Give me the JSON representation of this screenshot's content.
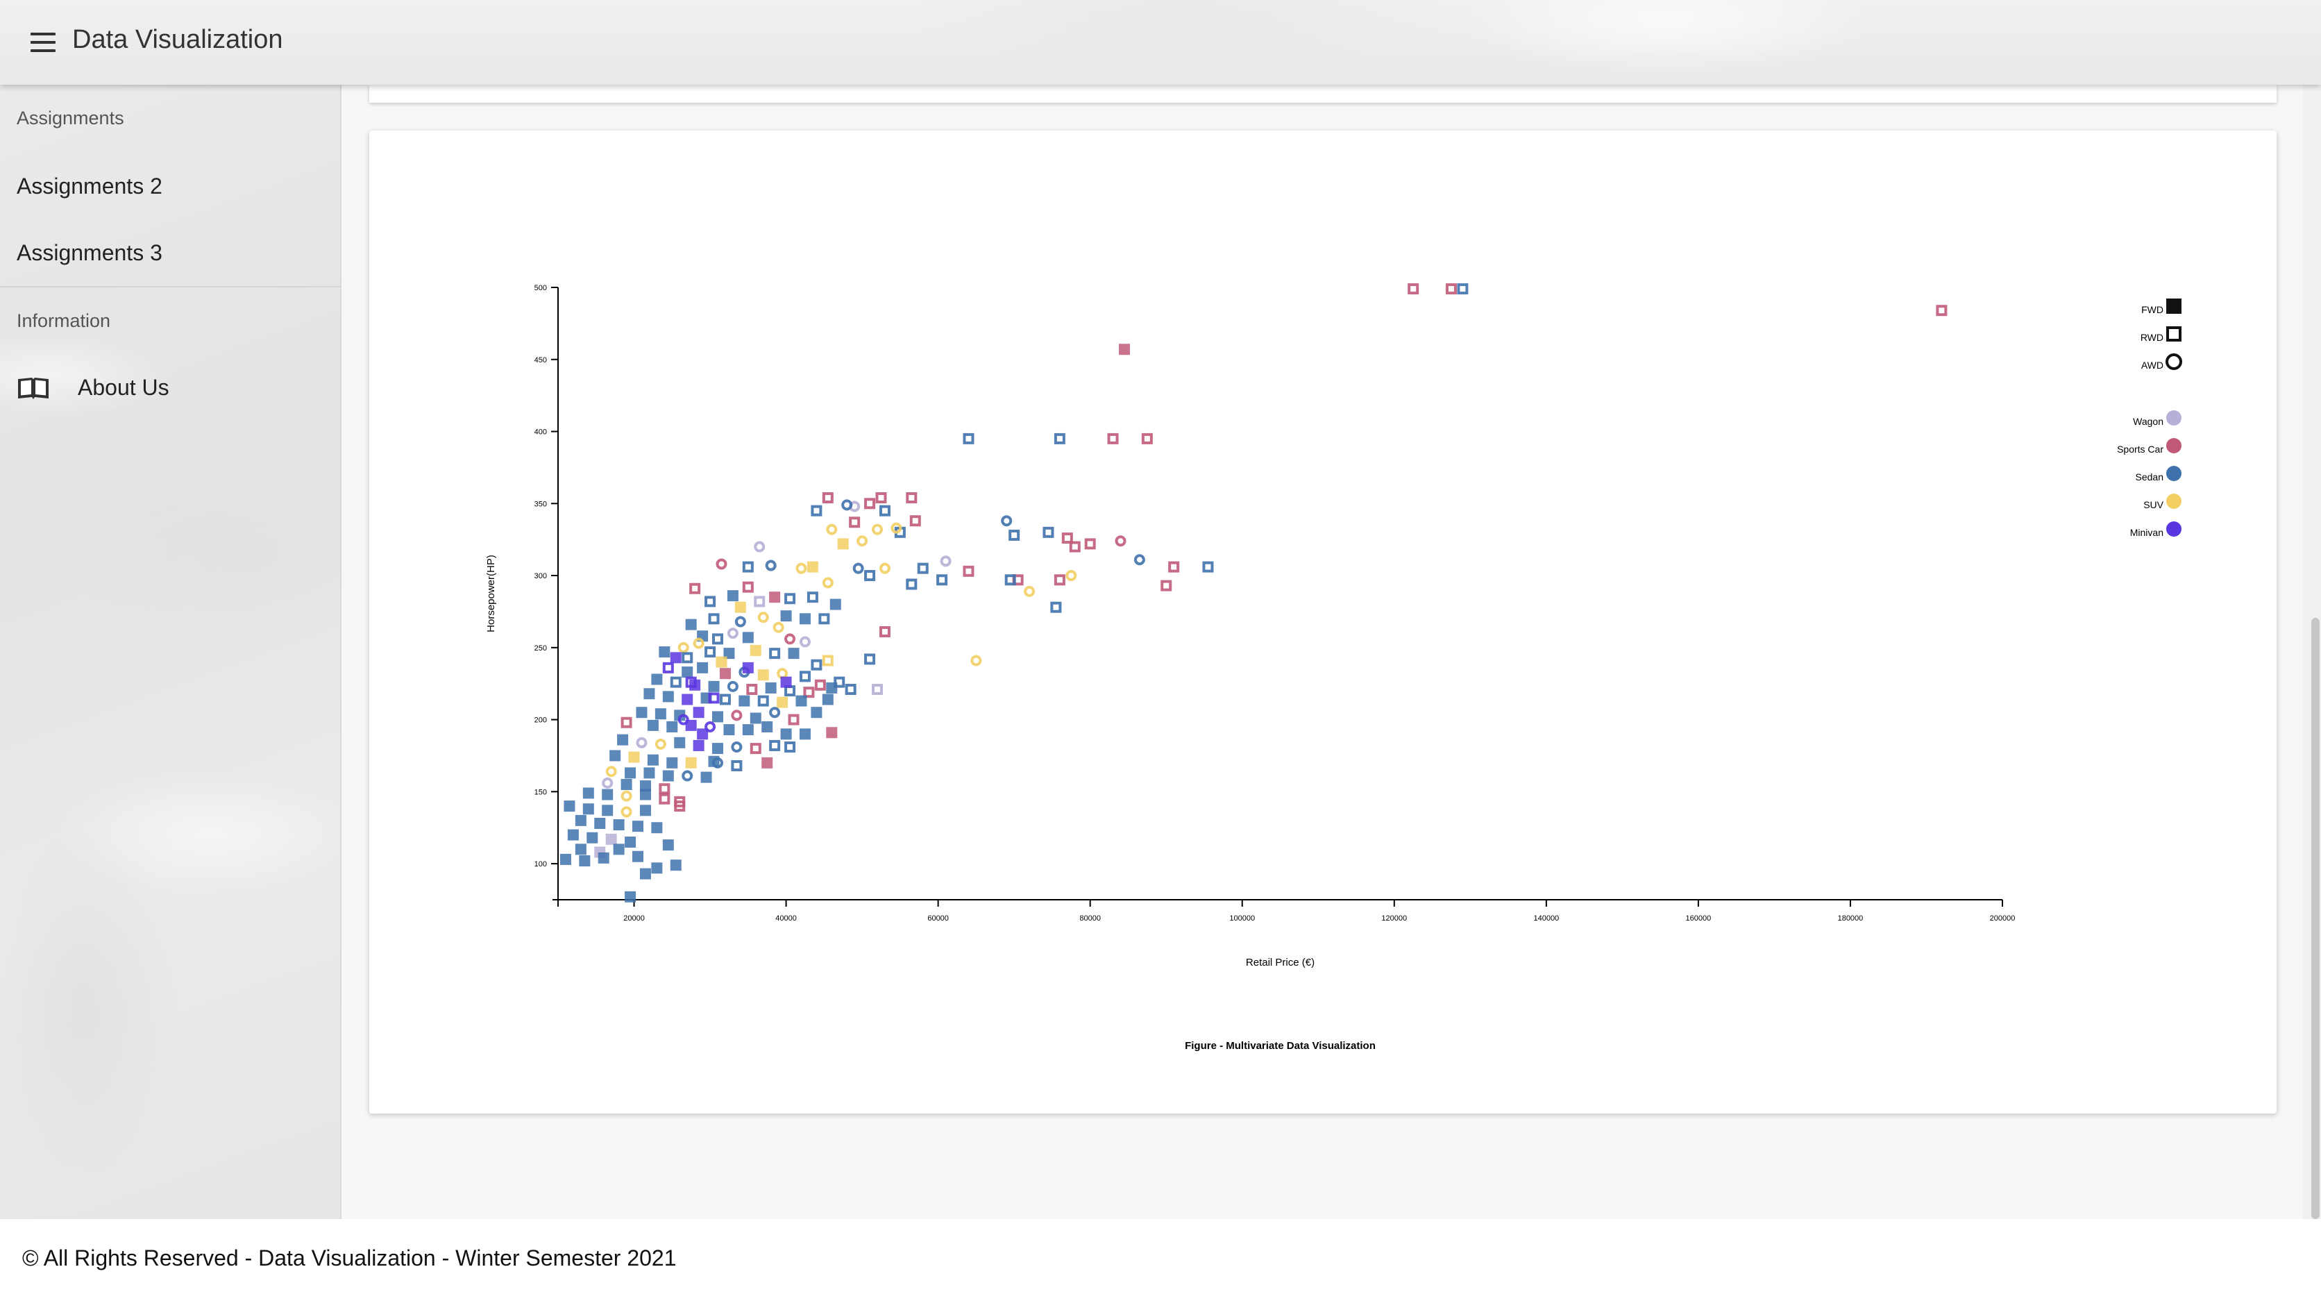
{
  "appbar": {
    "title": "Data Visualization",
    "menu_icon": "menu-icon"
  },
  "sidebar": {
    "section1": "Assignments",
    "items": [
      {
        "label": "Assignments 2"
      },
      {
        "label": "Assignments 3"
      }
    ],
    "section2": "Information",
    "about": {
      "label": "About Us",
      "icon": "book-icon"
    }
  },
  "footer": {
    "text": "© All Rights Reserved - Data Visualization - Winter Semester 2021"
  },
  "chart_data": {
    "type": "scatter",
    "title": "Figure - Multivariate Data Visualization",
    "xlabel": "Retail Price (€)",
    "ylabel": "Horsepower(HP)",
    "xlim": [
      10000,
      200000
    ],
    "ylim": [
      75,
      500
    ],
    "xticks": [
      20000,
      40000,
      60000,
      80000,
      100000,
      120000,
      140000,
      160000,
      180000,
      200000
    ],
    "yticks": [
      100,
      150,
      200,
      250,
      300,
      350,
      400,
      450,
      500
    ],
    "grid": false,
    "legend_placement": "top-right",
    "shape_legend": [
      {
        "label": "FWD",
        "shape": "filled-square"
      },
      {
        "label": "RWD",
        "shape": "hollow-square"
      },
      {
        "label": "AWD",
        "shape": "hollow-circle"
      }
    ],
    "color_legend": [
      {
        "label": "Wagon",
        "color": "#b7afd6"
      },
      {
        "label": "Sports Car",
        "color": "#c05a78"
      },
      {
        "label": "Sedan",
        "color": "#3f72ad"
      },
      {
        "label": "SUV",
        "color": "#f3cf63"
      },
      {
        "label": "Minivan",
        "color": "#5a36e0"
      }
    ],
    "points": [
      [
        192000,
        484,
        "Sports Car",
        "RWD"
      ],
      [
        122500,
        499,
        "Sports Car",
        "RWD"
      ],
      [
        127500,
        499,
        "Sports Car",
        "RWD"
      ],
      [
        129000,
        499,
        "Sedan",
        "RWD"
      ],
      [
        84500,
        457,
        "Sports Car",
        "FWD"
      ],
      [
        64000,
        395,
        "Sedan",
        "RWD"
      ],
      [
        76000,
        395,
        "Sedan",
        "RWD"
      ],
      [
        83000,
        395,
        "Sports Car",
        "RWD"
      ],
      [
        87500,
        395,
        "Sports Car",
        "RWD"
      ],
      [
        69000,
        338,
        "Sedan",
        "AWD"
      ],
      [
        70000,
        328,
        "Sedan",
        "RWD"
      ],
      [
        74500,
        330,
        "Sedan",
        "RWD"
      ],
      [
        77000,
        326,
        "Sports Car",
        "RWD"
      ],
      [
        80000,
        322,
        "Sports Car",
        "RWD"
      ],
      [
        78000,
        320,
        "Sports Car",
        "RWD"
      ],
      [
        84000,
        324,
        "Sports Car",
        "AWD"
      ],
      [
        86500,
        311,
        "Sedan",
        "AWD"
      ],
      [
        91000,
        306,
        "Sports Car",
        "RWD"
      ],
      [
        95500,
        306,
        "Sedan",
        "RWD"
      ],
      [
        90000,
        293,
        "Sports Car",
        "RWD"
      ],
      [
        70500,
        297,
        "Sports Car",
        "RWD"
      ],
      [
        69500,
        297,
        "Sedan",
        "RWD"
      ],
      [
        76000,
        297,
        "Sports Car",
        "RWD"
      ],
      [
        77500,
        300,
        "SUV",
        "AWD"
      ],
      [
        72000,
        289,
        "SUV",
        "AWD"
      ],
      [
        75500,
        278,
        "Sedan",
        "RWD"
      ],
      [
        64000,
        303,
        "Sports Car",
        "RWD"
      ],
      [
        65000,
        241,
        "SUV",
        "AWD"
      ],
      [
        51000,
        350,
        "Sports Car",
        "RWD"
      ],
      [
        52500,
        354,
        "Sports Car",
        "RWD"
      ],
      [
        56500,
        354,
        "Sports Car",
        "RWD"
      ],
      [
        45500,
        354,
        "Sports Car",
        "RWD"
      ],
      [
        49000,
        348,
        "Wagon",
        "AWD"
      ],
      [
        48000,
        349,
        "Sedan",
        "AWD"
      ],
      [
        44000,
        345,
        "Sedan",
        "RWD"
      ],
      [
        53000,
        345,
        "Sedan",
        "RWD"
      ],
      [
        57000,
        338,
        "Sports Car",
        "RWD"
      ],
      [
        55000,
        330,
        "Sedan",
        "RWD"
      ],
      [
        49000,
        337,
        "Sports Car",
        "RWD"
      ],
      [
        46000,
        332,
        "SUV",
        "AWD"
      ],
      [
        52000,
        332,
        "SUV",
        "AWD"
      ],
      [
        54500,
        333,
        "SUV",
        "AWD"
      ],
      [
        50000,
        324,
        "SUV",
        "AWD"
      ],
      [
        47500,
        322,
        "SUV",
        "FWD"
      ],
      [
        36500,
        320,
        "Wagon",
        "AWD"
      ],
      [
        42000,
        305,
        "SUV",
        "AWD"
      ],
      [
        43500,
        306,
        "SUV",
        "FWD"
      ],
      [
        38000,
        307,
        "Sedan",
        "AWD"
      ],
      [
        35000,
        306,
        "Sedan",
        "RWD"
      ],
      [
        31500,
        308,
        "Sports Car",
        "AWD"
      ],
      [
        49500,
        305,
        "Sedan",
        "AWD"
      ],
      [
        51000,
        300,
        "Sedan",
        "RWD"
      ],
      [
        53000,
        305,
        "SUV",
        "AWD"
      ],
      [
        58000,
        305,
        "Sedan",
        "RWD"
      ],
      [
        56500,
        294,
        "Sedan",
        "RWD"
      ],
      [
        60500,
        297,
        "Sedan",
        "RWD"
      ],
      [
        61000,
        310,
        "Wagon",
        "AWD"
      ],
      [
        45500,
        295,
        "SUV",
        "AWD"
      ],
      [
        35000,
        292,
        "Sports Car",
        "RWD"
      ],
      [
        28000,
        291,
        "Sports Car",
        "RWD"
      ],
      [
        33000,
        286,
        "Sedan",
        "FWD"
      ],
      [
        38500,
        285,
        "Sports Car",
        "FWD"
      ],
      [
        40500,
        284,
        "Sedan",
        "RWD"
      ],
      [
        43500,
        285,
        "Sedan",
        "RWD"
      ],
      [
        46500,
        280,
        "Sedan",
        "FWD"
      ],
      [
        36500,
        282,
        "Wagon",
        "RWD"
      ],
      [
        30000,
        282,
        "Sedan",
        "RWD"
      ],
      [
        34000,
        278,
        "SUV",
        "FWD"
      ],
      [
        37000,
        271,
        "SUV",
        "AWD"
      ],
      [
        34000,
        268,
        "Sedan",
        "AWD"
      ],
      [
        30500,
        270,
        "Sedan",
        "RWD"
      ],
      [
        27500,
        266,
        "Sedan",
        "FWD"
      ],
      [
        40000,
        272,
        "Sedan",
        "FWD"
      ],
      [
        42500,
        270,
        "Sedan",
        "FWD"
      ],
      [
        45000,
        270,
        "Sedan",
        "RWD"
      ],
      [
        53000,
        261,
        "Sports Car",
        "RWD"
      ],
      [
        40500,
        256,
        "Sports Car",
        "AWD"
      ],
      [
        42500,
        254,
        "Wagon",
        "AWD"
      ],
      [
        35000,
        257,
        "Sedan",
        "FWD"
      ],
      [
        31000,
        256,
        "Sedan",
        "RWD"
      ],
      [
        29000,
        258,
        "Sedan",
        "FWD"
      ],
      [
        26500,
        250,
        "SUV",
        "AWD"
      ],
      [
        24000,
        247,
        "Sedan",
        "FWD"
      ],
      [
        25500,
        243,
        "Minivan",
        "FWD"
      ],
      [
        27000,
        243,
        "Sedan",
        "RWD"
      ],
      [
        30000,
        247,
        "Sedan",
        "RWD"
      ],
      [
        32500,
        246,
        "Sedan",
        "FWD"
      ],
      [
        36000,
        248,
        "SUV",
        "FWD"
      ],
      [
        38500,
        246,
        "Sedan",
        "RWD"
      ],
      [
        41000,
        246,
        "Sedan",
        "FWD"
      ],
      [
        45500,
        241,
        "SUV",
        "RWD"
      ],
      [
        44000,
        238,
        "Sedan",
        "RWD"
      ],
      [
        51000,
        242,
        "Sedan",
        "RWD"
      ],
      [
        24500,
        236,
        "Minivan",
        "RWD"
      ],
      [
        27000,
        233,
        "Sedan",
        "FWD"
      ],
      [
        29000,
        236,
        "Sedan",
        "FWD"
      ],
      [
        32000,
        232,
        "Sports Car",
        "FWD"
      ],
      [
        34500,
        233,
        "Sedan",
        "AWD"
      ],
      [
        37000,
        231,
        "SUV",
        "FWD"
      ],
      [
        39500,
        232,
        "SUV",
        "AWD"
      ],
      [
        42500,
        230,
        "Sedan",
        "RWD"
      ],
      [
        47000,
        226,
        "Sedan",
        "RWD"
      ],
      [
        44500,
        224,
        "Sports Car",
        "RWD"
      ],
      [
        23000,
        228,
        "Sedan",
        "FWD"
      ],
      [
        25500,
        226,
        "Sedan",
        "RWD"
      ],
      [
        28000,
        224,
        "Minivan",
        "FWD"
      ],
      [
        30500,
        223,
        "Sedan",
        "FWD"
      ],
      [
        33000,
        223,
        "Sedan",
        "AWD"
      ],
      [
        35500,
        221,
        "Sports Car",
        "RWD"
      ],
      [
        38000,
        222,
        "Sedan",
        "FWD"
      ],
      [
        40500,
        220,
        "Sedan",
        "RWD"
      ],
      [
        43000,
        219,
        "Sports Car",
        "RWD"
      ],
      [
        46000,
        222,
        "Sedan",
        "FWD"
      ],
      [
        48500,
        221,
        "Sedan",
        "RWD"
      ],
      [
        52000,
        221,
        "Wagon",
        "RWD"
      ],
      [
        22000,
        218,
        "Sedan",
        "FWD"
      ],
      [
        24500,
        216,
        "Sedan",
        "FWD"
      ],
      [
        27000,
        214,
        "Minivan",
        "FWD"
      ],
      [
        29500,
        215,
        "Sedan",
        "FWD"
      ],
      [
        32000,
        214,
        "Sedan",
        "RWD"
      ],
      [
        34500,
        213,
        "Sedan",
        "FWD"
      ],
      [
        37000,
        213,
        "Sedan",
        "RWD"
      ],
      [
        39500,
        212,
        "SUV",
        "FWD"
      ],
      [
        42000,
        213,
        "Sedan",
        "FWD"
      ],
      [
        45500,
        214,
        "Sedan",
        "FWD"
      ],
      [
        21000,
        205,
        "Sedan",
        "FWD"
      ],
      [
        23500,
        204,
        "Sedan",
        "FWD"
      ],
      [
        26000,
        203,
        "Sedan",
        "FWD"
      ],
      [
        28500,
        205,
        "Minivan",
        "FWD"
      ],
      [
        31000,
        202,
        "Sedan",
        "FWD"
      ],
      [
        33500,
        203,
        "Sports Car",
        "AWD"
      ],
      [
        36000,
        201,
        "Sedan",
        "FWD"
      ],
      [
        38500,
        205,
        "Sedan",
        "AWD"
      ],
      [
        41000,
        200,
        "Sports Car",
        "RWD"
      ],
      [
        44000,
        205,
        "Sedan",
        "FWD"
      ],
      [
        19000,
        198,
        "Sports Car",
        "RWD"
      ],
      [
        22500,
        196,
        "Sedan",
        "FWD"
      ],
      [
        25000,
        195,
        "Sedan",
        "FWD"
      ],
      [
        27500,
        196,
        "Minivan",
        "FWD"
      ],
      [
        30000,
        195,
        "Minivan",
        "AWD"
      ],
      [
        32500,
        193,
        "Sedan",
        "FWD"
      ],
      [
        35000,
        193,
        "Sedan",
        "FWD"
      ],
      [
        37500,
        195,
        "Sedan",
        "FWD"
      ],
      [
        40000,
        190,
        "Sedan",
        "FWD"
      ],
      [
        42500,
        190,
        "Sedan",
        "FWD"
      ],
      [
        46000,
        191,
        "Sports Car",
        "FWD"
      ],
      [
        18500,
        186,
        "Sedan",
        "FWD"
      ],
      [
        21000,
        184,
        "Wagon",
        "AWD"
      ],
      [
        23500,
        183,
        "SUV",
        "AWD"
      ],
      [
        26000,
        184,
        "Sedan",
        "FWD"
      ],
      [
        28500,
        182,
        "Minivan",
        "FWD"
      ],
      [
        31000,
        180,
        "Sedan",
        "FWD"
      ],
      [
        33500,
        181,
        "Sedan",
        "AWD"
      ],
      [
        36000,
        180,
        "Sports Car",
        "RWD"
      ],
      [
        38500,
        182,
        "Sedan",
        "RWD"
      ],
      [
        40500,
        181,
        "Sedan",
        "RWD"
      ],
      [
        17500,
        175,
        "Sedan",
        "FWD"
      ],
      [
        20000,
        174,
        "SUV",
        "FWD"
      ],
      [
        22500,
        172,
        "Sedan",
        "FWD"
      ],
      [
        25000,
        170,
        "Sedan",
        "FWD"
      ],
      [
        27500,
        170,
        "SUV",
        "FWD"
      ],
      [
        30500,
        171,
        "Sedan",
        "FWD"
      ],
      [
        33500,
        168,
        "Sedan",
        "RWD"
      ],
      [
        37500,
        170,
        "Sports Car",
        "FWD"
      ],
      [
        17000,
        164,
        "SUV",
        "AWD"
      ],
      [
        19500,
        163,
        "Sedan",
        "FWD"
      ],
      [
        22000,
        163,
        "Sedan",
        "FWD"
      ],
      [
        24500,
        161,
        "Sedan",
        "FWD"
      ],
      [
        27000,
        161,
        "Sedan",
        "AWD"
      ],
      [
        29500,
        160,
        "Sedan",
        "FWD"
      ],
      [
        16500,
        156,
        "Wagon",
        "AWD"
      ],
      [
        19000,
        155,
        "Sedan",
        "FWD"
      ],
      [
        21500,
        154,
        "Sedan",
        "FWD"
      ],
      [
        24000,
        152,
        "Sports Car",
        "RWD"
      ],
      [
        14000,
        149,
        "Sedan",
        "FWD"
      ],
      [
        16500,
        148,
        "Sedan",
        "FWD"
      ],
      [
        19000,
        147,
        "SUV",
        "AWD"
      ],
      [
        21500,
        148,
        "Sedan",
        "FWD"
      ],
      [
        24000,
        145,
        "Sports Car",
        "RWD"
      ],
      [
        26000,
        143,
        "Sports Car",
        "RWD"
      ],
      [
        11500,
        140,
        "Sedan",
        "FWD"
      ],
      [
        14000,
        138,
        "Sedan",
        "FWD"
      ],
      [
        16500,
        137,
        "Sedan",
        "FWD"
      ],
      [
        19000,
        136,
        "SUV",
        "AWD"
      ],
      [
        21500,
        137,
        "Sedan",
        "FWD"
      ],
      [
        26000,
        140,
        "Sports Car",
        "RWD"
      ],
      [
        13000,
        130,
        "Sedan",
        "FWD"
      ],
      [
        15500,
        128,
        "Sedan",
        "FWD"
      ],
      [
        18000,
        127,
        "Sedan",
        "FWD"
      ],
      [
        20500,
        126,
        "Sedan",
        "FWD"
      ],
      [
        23000,
        125,
        "Sedan",
        "FWD"
      ],
      [
        12000,
        120,
        "Sedan",
        "FWD"
      ],
      [
        14500,
        118,
        "Sedan",
        "FWD"
      ],
      [
        17000,
        117,
        "Wagon",
        "FWD"
      ],
      [
        19500,
        115,
        "Sedan",
        "FWD"
      ],
      [
        13000,
        110,
        "Sedan",
        "FWD"
      ],
      [
        15500,
        108,
        "Wagon",
        "FWD"
      ],
      [
        18000,
        110,
        "Sedan",
        "FWD"
      ],
      [
        11000,
        103,
        "Sedan",
        "FWD"
      ],
      [
        13500,
        102,
        "Sedan",
        "FWD"
      ],
      [
        16000,
        104,
        "Sedan",
        "FWD"
      ],
      [
        20500,
        105,
        "Sedan",
        "FWD"
      ],
      [
        24500,
        113,
        "Sedan",
        "FWD"
      ],
      [
        21500,
        93,
        "Sedan",
        "FWD"
      ],
      [
        19500,
        77,
        "Sedan",
        "FWD"
      ],
      [
        23000,
        97,
        "Sedan",
        "FWD"
      ],
      [
        25500,
        99,
        "Sedan",
        "FWD"
      ],
      [
        28500,
        253,
        "SUV",
        "AWD"
      ],
      [
        39000,
        264,
        "SUV",
        "AWD"
      ],
      [
        33000,
        260,
        "Wagon",
        "AWD"
      ],
      [
        31500,
        240,
        "SUV",
        "FWD"
      ],
      [
        27500,
        226,
        "Minivan",
        "RWD"
      ],
      [
        35000,
        236,
        "Minivan",
        "FWD"
      ],
      [
        30500,
        215,
        "Minivan",
        "RWD"
      ],
      [
        29000,
        190,
        "Minivan",
        "FWD"
      ],
      [
        26500,
        200,
        "Minivan",
        "AWD"
      ],
      [
        31000,
        170,
        "Sedan",
        "AWD"
      ],
      [
        40000,
        226,
        "Minivan",
        "FWD"
      ]
    ]
  }
}
